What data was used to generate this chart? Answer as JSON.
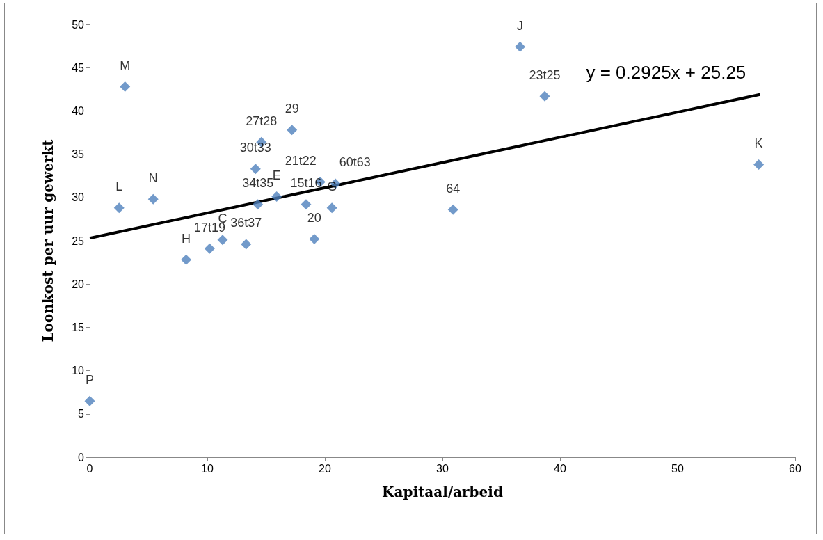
{
  "chart_data": {
    "type": "scatter",
    "xlabel": "Kapitaal/arbeid",
    "ylabel": "Loonkost per uur gewerkt",
    "xlim": [
      0,
      60
    ],
    "xticks": [
      0,
      10,
      20,
      30,
      40,
      50,
      60
    ],
    "ylim": [
      0,
      50
    ],
    "yticks": [
      0,
      5,
      10,
      15,
      20,
      25,
      30,
      35,
      40,
      45,
      50
    ],
    "grid": false,
    "marker": "diamond",
    "series": [
      {
        "color": "#4f81bd",
        "x": [
          0,
          2.5,
          3.0,
          5.4,
          8.2,
          10.2,
          11.3,
          13.3,
          14.1,
          14.6,
          14.3,
          15.9,
          17.2,
          18.4,
          19.1,
          19.6,
          20.6,
          20.9,
          30.9,
          36.6,
          38.7,
          56.9
        ],
        "values": [
          6.5,
          28.8,
          42.8,
          29.8,
          22.8,
          24.1,
          25.1,
          24.6,
          33.3,
          36.4,
          29.2,
          30.1,
          37.8,
          29.2,
          25.2,
          31.8,
          28.8,
          31.6,
          28.6,
          47.4,
          41.7,
          33.8
        ]
      },
      {
        "type": "line",
        "color": "#000000",
        "marker": "none",
        "line_style": "solid",
        "x": [
          0,
          57
        ],
        "values": [
          25.3,
          41.9
        ]
      }
    ],
    "annotations": [
      {
        "text": "P",
        "x": 0,
        "y": 6.5
      },
      {
        "text": "L",
        "x": 2.5,
        "y": 28.8
      },
      {
        "text": "M",
        "x": 3.0,
        "y": 42.8
      },
      {
        "text": "N",
        "x": 5.4,
        "y": 29.8
      },
      {
        "text": "H",
        "x": 8.2,
        "y": 22.8
      },
      {
        "text": "17t19",
        "x": 10.2,
        "y": 24.1
      },
      {
        "text": "C",
        "x": 11.3,
        "y": 25.1
      },
      {
        "text": "36t37",
        "x": 13.3,
        "y": 24.6
      },
      {
        "text": "30t33",
        "x": 14.1,
        "y": 33.3
      },
      {
        "text": "27t28",
        "x": 14.6,
        "y": 36.4
      },
      {
        "text": "34t35",
        "x": 14.3,
        "y": 29.2
      },
      {
        "text": "E",
        "x": 15.9,
        "y": 30.1
      },
      {
        "text": "29",
        "x": 17.2,
        "y": 37.8
      },
      {
        "text": "15t16",
        "x": 18.4,
        "y": 29.2
      },
      {
        "text": "20",
        "x": 19.1,
        "y": 25.2
      },
      {
        "text": "21t22",
        "x": 19.6,
        "y": 31.8
      },
      {
        "text": "G",
        "x": 20.6,
        "y": 28.8
      },
      {
        "text": "60t63",
        "x": 20.9,
        "y": 31.6
      },
      {
        "text": "64",
        "x": 30.9,
        "y": 28.6
      },
      {
        "text": "J",
        "x": 36.6,
        "y": 47.4
      },
      {
        "text": "23t25",
        "x": 38.7,
        "y": 41.7
      },
      {
        "text": "K",
        "x": 56.9,
        "y": 33.8
      },
      "y = 0.2925x + 25.25"
    ]
  }
}
